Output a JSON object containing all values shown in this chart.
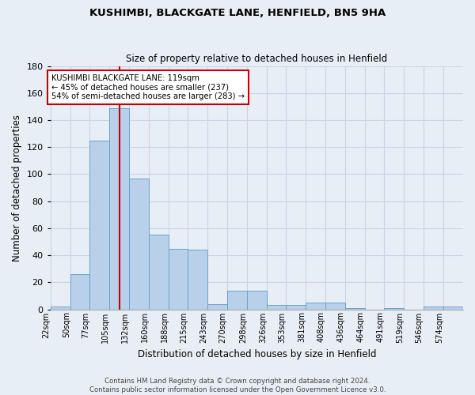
{
  "title": "KUSHIMBI, BLACKGATE LANE, HENFIELD, BN5 9HA",
  "subtitle": "Size of property relative to detached houses in Henfield",
  "xlabel": "Distribution of detached houses by size in Henfield",
  "ylabel": "Number of detached properties",
  "bin_labels": [
    "22sqm",
    "50sqm",
    "77sqm",
    "105sqm",
    "132sqm",
    "160sqm",
    "188sqm",
    "215sqm",
    "243sqm",
    "270sqm",
    "298sqm",
    "326sqm",
    "353sqm",
    "381sqm",
    "408sqm",
    "436sqm",
    "464sqm",
    "491sqm",
    "519sqm",
    "546sqm",
    "574sqm"
  ],
  "bar_heights": [
    2,
    26,
    125,
    149,
    97,
    55,
    45,
    44,
    4,
    14,
    14,
    3,
    3,
    5,
    5,
    1,
    0,
    1,
    0,
    2,
    2
  ],
  "bar_color": "#b8d0ea",
  "bar_edge_color": "#6aa3cc",
  "grid_color": "#c8d4e8",
  "background_color": "#e8eef6",
  "vline_x": 119,
  "vline_color": "#cc0000",
  "annotation_text": "KUSHIMBI BLACKGATE LANE: 119sqm\n← 45% of detached houses are smaller (237)\n54% of semi-detached houses are larger (283) →",
  "annotation_box_color": "white",
  "annotation_box_edge": "#cc0000",
  "ylim": [
    0,
    180
  ],
  "yticks": [
    0,
    20,
    40,
    60,
    80,
    100,
    120,
    140,
    160,
    180
  ],
  "footer": "Contains HM Land Registry data © Crown copyright and database right 2024.\nContains public sector information licensed under the Open Government Licence v3.0.",
  "bin_edges": [
    22,
    50,
    77,
    105,
    132,
    160,
    188,
    215,
    243,
    270,
    298,
    326,
    353,
    381,
    408,
    436,
    464,
    491,
    519,
    546,
    574,
    602
  ]
}
